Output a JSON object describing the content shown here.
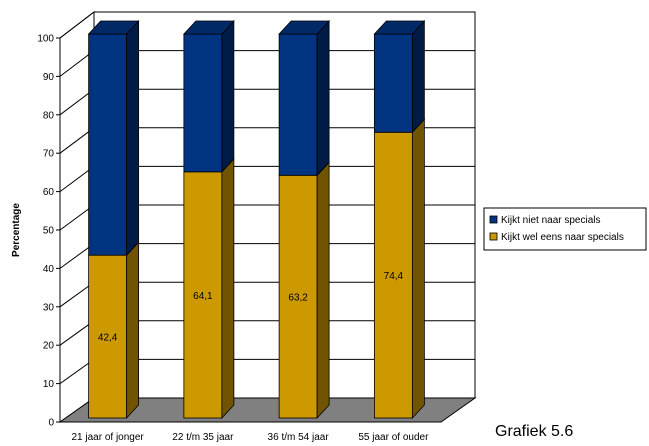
{
  "caption": "Grafiek 5.6",
  "chart_data": {
    "type": "bar",
    "stacked": true,
    "three_d": true,
    "categories": [
      "21 jaar of jonger",
      "22 t/m 35 jaar",
      "36 t/m 54 jaar",
      "55 jaar of ouder"
    ],
    "series": [
      {
        "name": "Kijkt wel eens naar specials",
        "color": "#CC9900",
        "values": [
          42.4,
          64.1,
          63.2,
          74.4
        ]
      },
      {
        "name": "Kijkt niet naar specials",
        "color": "#003380",
        "values": [
          57.6,
          35.9,
          36.8,
          25.6
        ]
      }
    ],
    "data_labels": [
      "42,4",
      "64,1",
      "63,2",
      "74,4"
    ],
    "ylabel": "Percentage",
    "ylim": [
      0,
      100
    ],
    "yticks": [
      "0",
      "10",
      "20",
      "30",
      "40",
      "50",
      "60",
      "70",
      "80",
      "90",
      "100"
    ],
    "grid": true,
    "legend_position": "right",
    "legend_order": [
      "Kijkt niet naar specials",
      "Kijkt wel eens naar specials"
    ]
  }
}
